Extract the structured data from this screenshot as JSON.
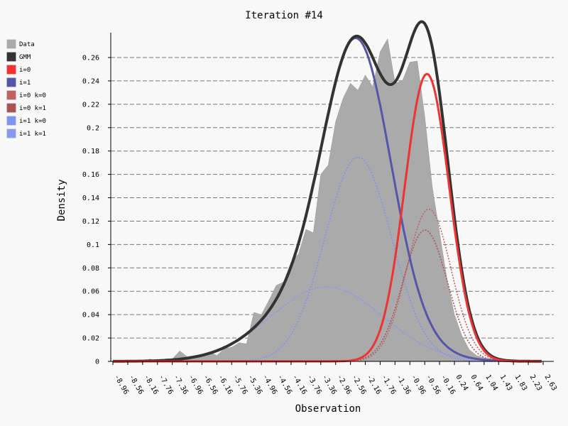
{
  "chart_data": {
    "type": "area",
    "title": "Iteration #14",
    "xlabel": "Observation",
    "ylabel": "Density",
    "xlim": [
      -9.0,
      2.8
    ],
    "ylim": [
      0,
      0.28
    ],
    "grid": "horizontal-dashed",
    "legend_position": "left",
    "x_ticks": [
      "-8.96",
      "-8.56",
      "-8.16",
      "-7.76",
      "-7.36",
      "-6.96",
      "-6.56",
      "-6.16",
      "-5.76",
      "-5.36",
      "-4.96",
      "-4.56",
      "-4.16",
      "-3.76",
      "-3.36",
      "-2.96",
      "-2.56",
      "-2.16",
      "-1.76",
      "-1.36",
      "-0.96",
      "-0.56",
      "-0.16",
      "0.24",
      "0.64",
      "1.04",
      "1.43",
      "1.83",
      "2.23",
      "2.63"
    ],
    "y_ticks": [
      "0",
      "0.02",
      "0.04",
      "0.06",
      "0.08",
      "0.1",
      "0.12",
      "0.14",
      "0.16",
      "0.18",
      "0.2",
      "0.22",
      "0.24",
      "0.26"
    ],
    "legend": [
      {
        "label": "Data",
        "color": "#aaaaaa"
      },
      {
        "label": "GMM",
        "color": "#333333"
      },
      {
        "label": "i=0",
        "color": "#ee3333"
      },
      {
        "label": "i=1",
        "color": "#5555aa"
      },
      {
        "label": "i=0 k=0",
        "color": "#bb6666"
      },
      {
        "label": "i=0 k=1",
        "color": "#aa5555"
      },
      {
        "label": "i=1 k=0",
        "color": "#7f94ee"
      },
      {
        "label": "i=1 k=1",
        "color": "#8899ee"
      }
    ],
    "data_area": {
      "x": [
        -8.96,
        -8.76,
        -8.56,
        -8.36,
        -8.16,
        -7.96,
        -7.76,
        -7.56,
        -7.36,
        -7.16,
        -6.96,
        -6.76,
        -6.56,
        -6.36,
        -6.16,
        -5.96,
        -5.76,
        -5.56,
        -5.36,
        -5.16,
        -4.96,
        -4.76,
        -4.56,
        -4.36,
        -4.16,
        -3.96,
        -3.76,
        -3.56,
        -3.36,
        -3.16,
        -2.96,
        -2.76,
        -2.56,
        -2.36,
        -2.16,
        -1.96,
        -1.76,
        -1.56,
        -1.36,
        -1.16,
        -0.96,
        -0.76,
        -0.56,
        -0.36,
        -0.16,
        0.04,
        0.24,
        0.44,
        0.64,
        0.84,
        1.04,
        1.24,
        1.43,
        1.63,
        1.83,
        2.03,
        2.23,
        2.43,
        2.63
      ],
      "y": [
        0,
        0.001,
        0,
        0.001,
        0,
        0.002,
        0,
        0.002,
        0.002,
        0.009,
        0.004,
        0.005,
        0.006,
        0.008,
        0.005,
        0.011,
        0.012,
        0.016,
        0.015,
        0.042,
        0.04,
        0.052,
        0.065,
        0.068,
        0.085,
        0.092,
        0.113,
        0.11,
        0.16,
        0.168,
        0.205,
        0.225,
        0.238,
        0.232,
        0.245,
        0.235,
        0.265,
        0.276,
        0.238,
        0.24,
        0.256,
        0.257,
        0.21,
        0.15,
        0.11,
        0.07,
        0.04,
        0.022,
        0.01,
        0.005,
        0.003,
        0.002,
        0.001,
        0.001,
        0,
        0,
        0,
        0,
        0
      ]
    },
    "series": [
      {
        "label": "GMM",
        "role": "mixture",
        "color": "#333333",
        "components": [
          {
            "mu": -2.35,
            "sigma": 0.9,
            "weight": 0.5
          },
          {
            "mu": -0.5,
            "sigma": 0.6,
            "weight": 0.37
          },
          {
            "mu": -3.2,
            "sigma": 1.5,
            "weight": 0.24
          }
        ]
      },
      {
        "label": "i=0",
        "role": "total",
        "color": "#ee3333",
        "components": [
          {
            "mu": -0.5,
            "sigma": 0.6,
            "weight": 0.37
          }
        ]
      },
      {
        "label": "i=1",
        "role": "total",
        "color": "#5555aa",
        "components": [
          {
            "mu": -2.35,
            "sigma": 0.9,
            "weight": 0.5
          },
          {
            "mu": -3.2,
            "sigma": 1.5,
            "weight": 0.24
          }
        ]
      },
      {
        "label": "i=0 k=0",
        "role": "component",
        "color": "#bb6666",
        "components": [
          {
            "mu": -0.45,
            "sigma": 0.6,
            "weight": 0.196
          }
        ]
      },
      {
        "label": "i=0 k=1",
        "role": "component",
        "color": "#aa5555",
        "components": [
          {
            "mu": -0.55,
            "sigma": 0.6,
            "weight": 0.169
          }
        ]
      },
      {
        "label": "i=1 k=0",
        "role": "component",
        "color": "#7f94ee",
        "components": [
          {
            "mu": -2.35,
            "sigma": 0.9,
            "weight": 0.394
          }
        ]
      },
      {
        "label": "i=1 k=1",
        "role": "component",
        "color": "#8899ee",
        "components": [
          {
            "mu": -3.2,
            "sigma": 1.5,
            "weight": 0.24
          }
        ]
      }
    ]
  }
}
